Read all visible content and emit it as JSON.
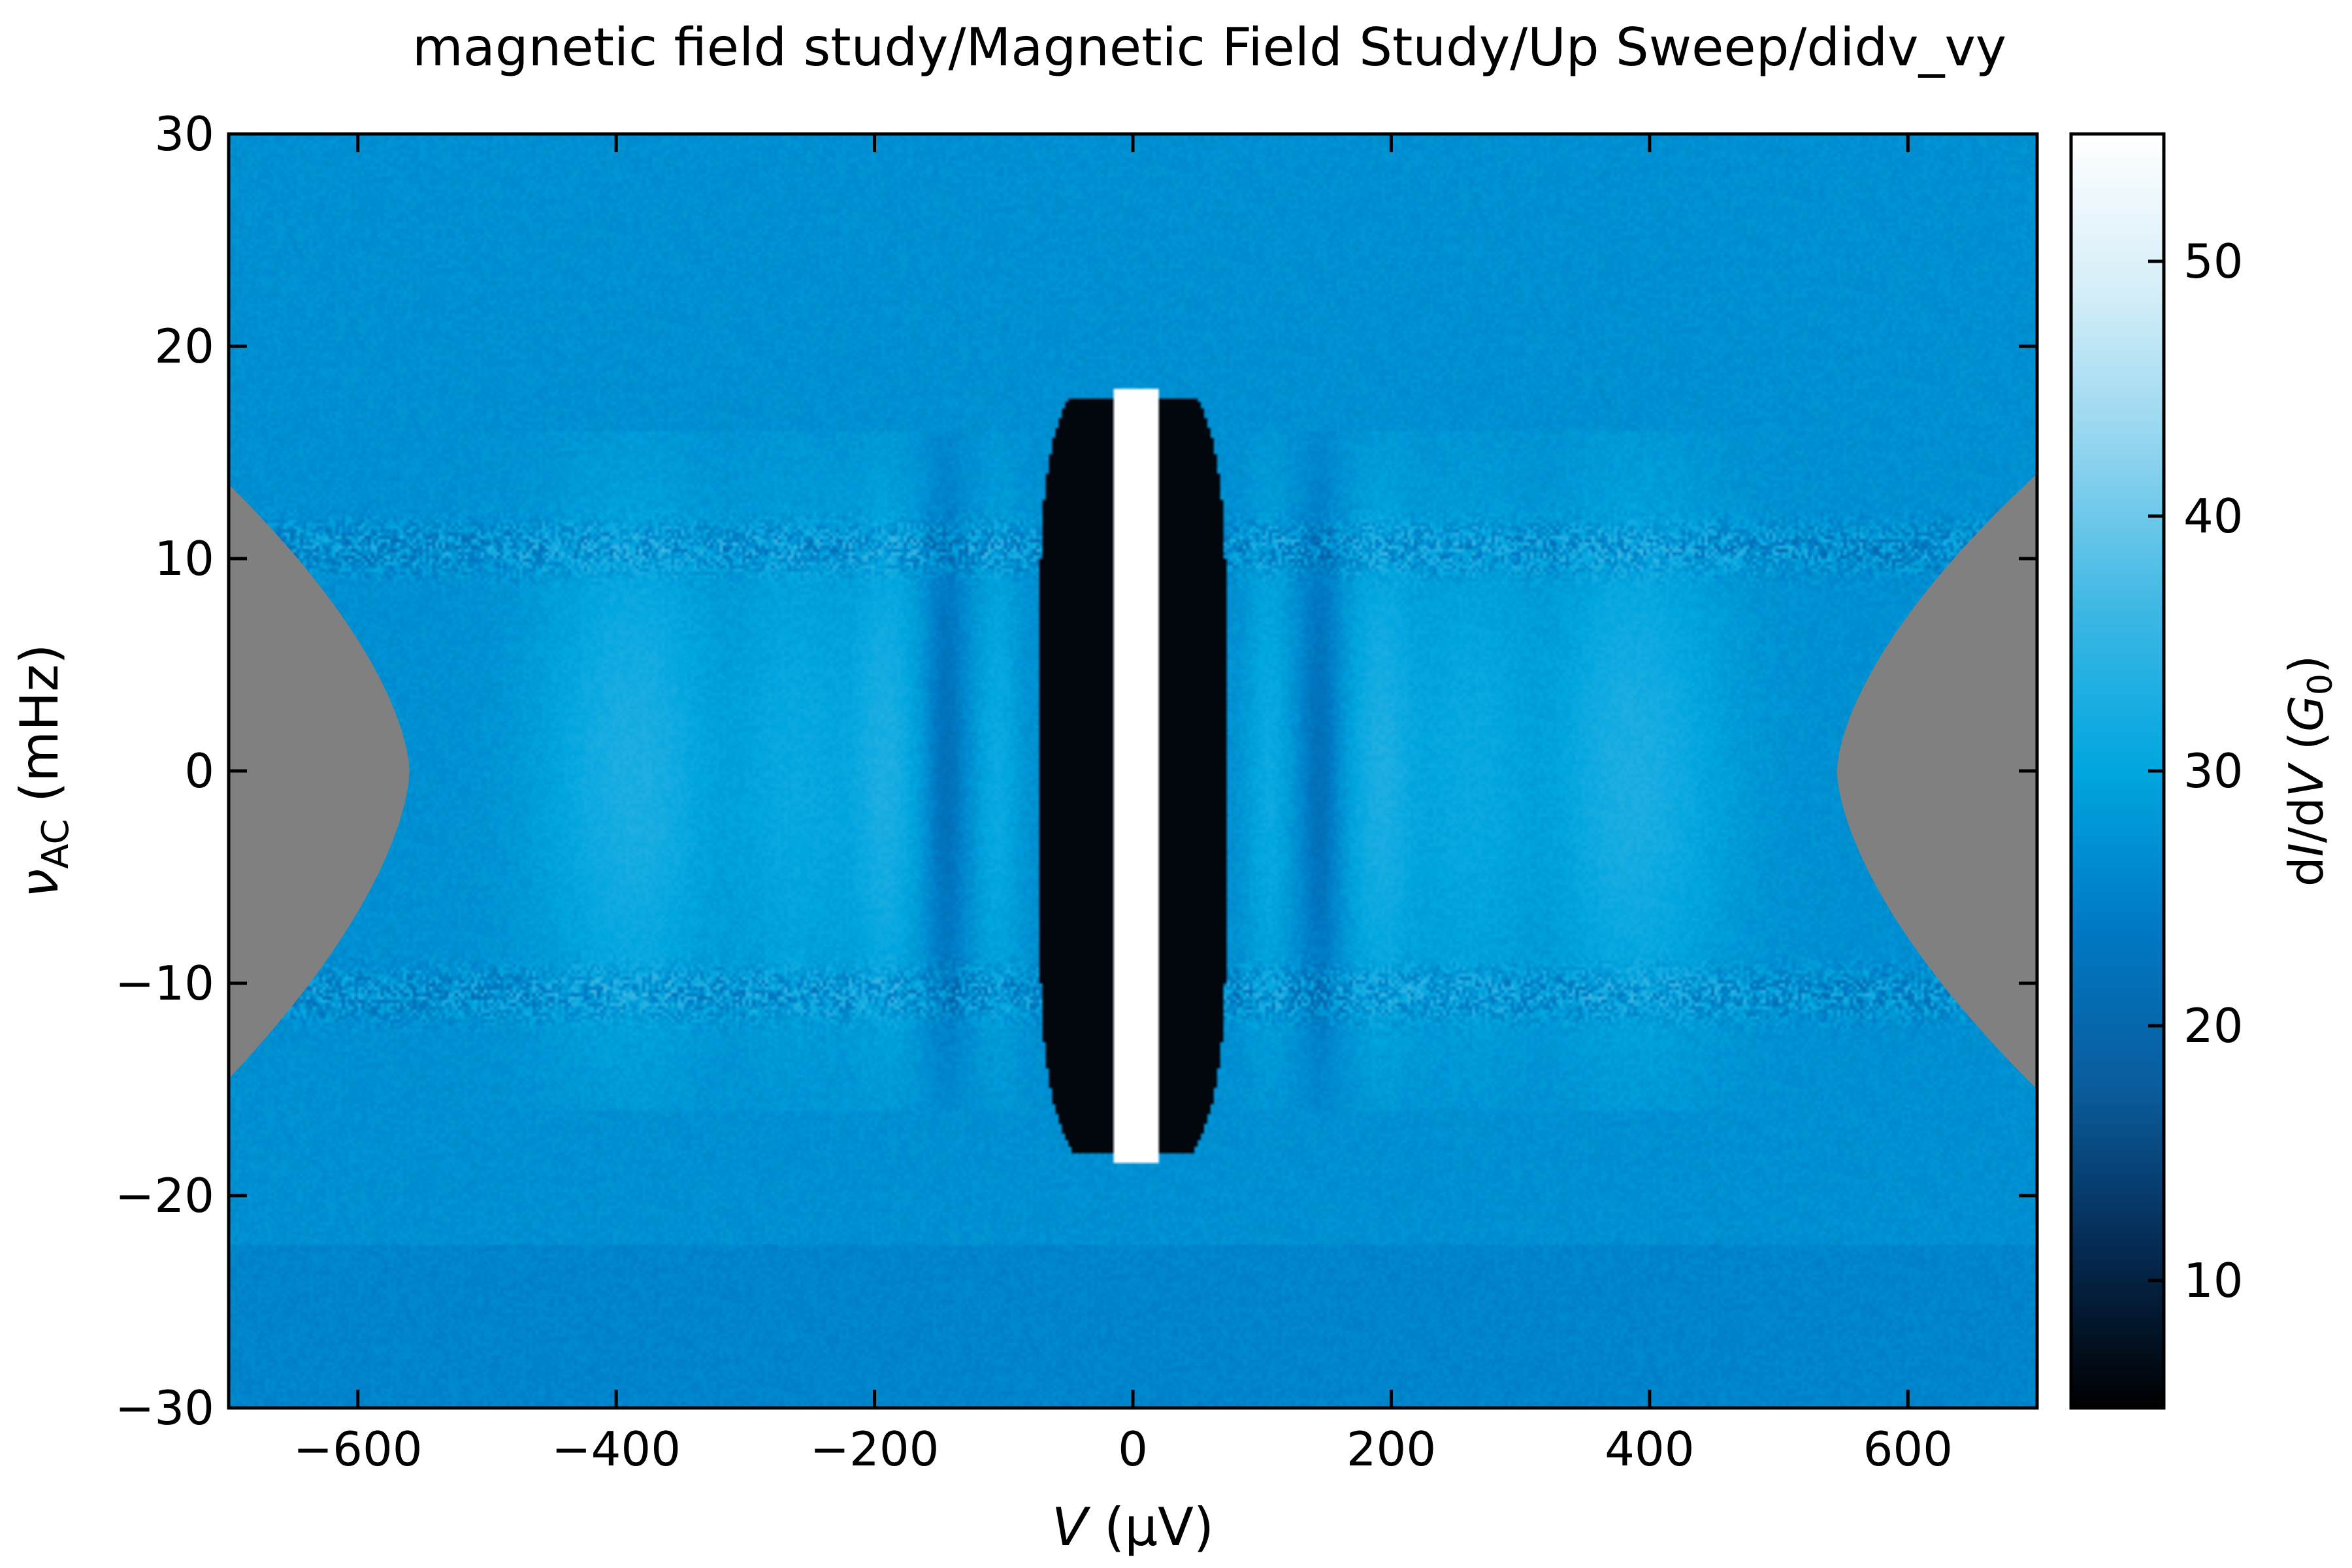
{
  "chart_data": {
    "type": "heatmap",
    "title": "magnetic field study/Magnetic Field Study/Up Sweep/didv_vy",
    "xlabel": {
      "italic": "V",
      "rest": " (µV)"
    },
    "ylabel": {
      "symbol": "ν",
      "subscript": "AC",
      "rest": " (mHz)"
    },
    "colorbar_label": {
      "pre": "d",
      "i": "I",
      "mid": "/d",
      "v": "V",
      "open": " (",
      "g": "G",
      "sub": "0",
      "close": ")"
    },
    "xlim": [
      -700,
      700
    ],
    "ylim": [
      -30,
      30
    ],
    "clim": [
      5,
      55
    ],
    "colormap": "dark-to-cyan-to-white",
    "colormap_stops": [
      "#000000",
      "#052a52",
      "#0a5c9c",
      "#0078c3",
      "#00a6e0",
      "#3cb7e4",
      "#8fd4ef",
      "#d4eef8",
      "#ffffff"
    ],
    "masked_color": "#808080",
    "x_ticks": [
      {
        "value": -600,
        "label": "−600"
      },
      {
        "value": -400,
        "label": "−400"
      },
      {
        "value": -200,
        "label": "−200"
      },
      {
        "value": 0,
        "label": "0"
      },
      {
        "value": 200,
        "label": "200"
      },
      {
        "value": 400,
        "label": "400"
      },
      {
        "value": 600,
        "label": "600"
      }
    ],
    "y_ticks": [
      {
        "value": -30,
        "label": "−30"
      },
      {
        "value": -20,
        "label": "−20"
      },
      {
        "value": -10,
        "label": "−10"
      },
      {
        "value": 0,
        "label": "0"
      },
      {
        "value": 10,
        "label": "10"
      },
      {
        "value": 20,
        "label": "20"
      },
      {
        "value": 30,
        "label": "30"
      }
    ],
    "colorbar_ticks": [
      {
        "value": 10,
        "label": "10"
      },
      {
        "value": 20,
        "label": "20"
      },
      {
        "value": 30,
        "label": "30"
      },
      {
        "value": 40,
        "label": "40"
      },
      {
        "value": 50,
        "label": "50"
      }
    ],
    "features": {
      "background_conductance": 27,
      "central_peak": {
        "v_center": 0,
        "v_halfwidth": 18,
        "nu_extent": [
          -18.5,
          18
        ],
        "value": 55
      },
      "dip_lobes": {
        "v_inner": 18,
        "v_outer": 72,
        "nu_extent": [
          -18,
          17.5
        ],
        "value": 6
      },
      "masked_regions": [
        {
          "side": "left",
          "v_boundary_at_nu0": -560,
          "nu_extent": [
            -14.5,
            13.5
          ]
        },
        {
          "side": "right",
          "v_boundary_at_nu0": 545,
          "nu_extent": [
            -15,
            14
          ]
        }
      ],
      "noisy_bands_nu": [
        10.5,
        -10.5
      ],
      "resonance_lines_v": [
        -190,
        -145,
        -105,
        105,
        145,
        190,
        260,
        380,
        -380
      ]
    }
  }
}
